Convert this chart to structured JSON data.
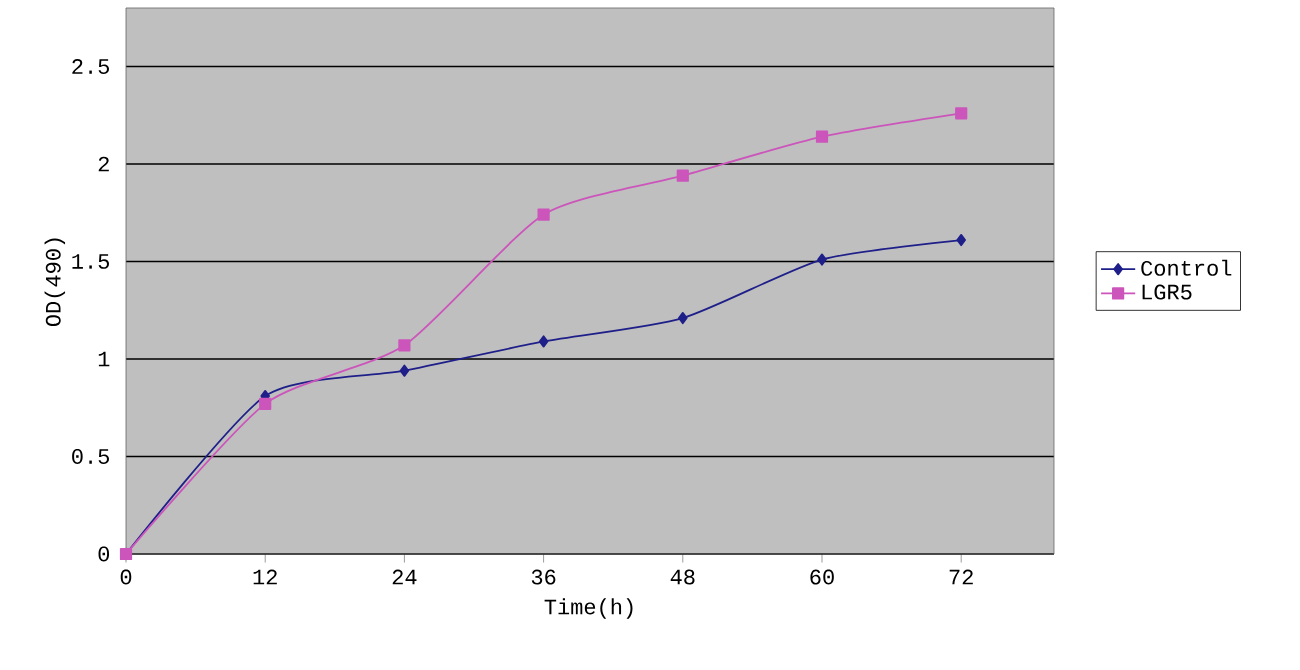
{
  "chart_data": {
    "type": "line",
    "xlabel": "Time(h)",
    "ylabel": "OD(490)",
    "x": [
      0,
      12,
      24,
      36,
      48,
      60,
      72
    ],
    "series": [
      {
        "name": "Control",
        "color": "#1f1f8a",
        "marker": "diamond",
        "values": [
          0,
          0.81,
          0.94,
          1.09,
          1.21,
          1.51,
          1.61
        ]
      },
      {
        "name": "LGR5",
        "color": "#cc55bb",
        "marker": "square",
        "values": [
          0,
          0.77,
          1.07,
          1.74,
          1.94,
          2.14,
          2.26
        ]
      }
    ],
    "xlim": [
      0,
      80
    ],
    "xticks": [
      0,
      12,
      24,
      36,
      48,
      60,
      72
    ],
    "ylim": [
      0,
      2.8
    ],
    "yticks": [
      0,
      0.5,
      1,
      1.5,
      2,
      2.5
    ],
    "grid": "y",
    "legend": "right"
  }
}
